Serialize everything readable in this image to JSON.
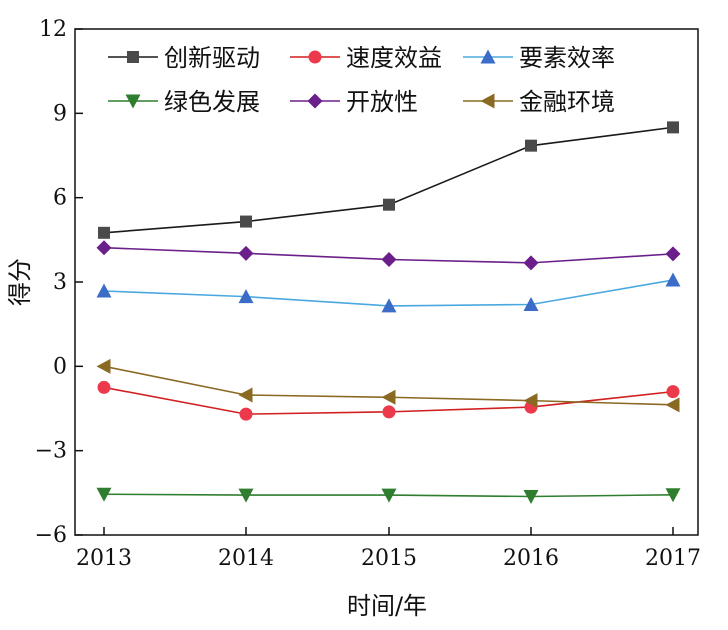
{
  "chart_data": {
    "type": "line",
    "xlabel": "时间/年",
    "ylabel": "得分",
    "categories": [
      "2013",
      "2014",
      "2015",
      "2016",
      "2017"
    ],
    "ylim": [
      -6,
      12
    ],
    "yticks": [
      -6,
      -3,
      0,
      3,
      6,
      9,
      12
    ],
    "ytick_labels": [
      "−6",
      "−3",
      "0",
      "3",
      "6",
      "9",
      "12"
    ],
    "grid": false,
    "legend": "top, two rows",
    "series": [
      {
        "name": "创新驱动",
        "values": [
          4.75,
          5.15,
          5.75,
          7.85,
          8.5
        ],
        "color": "#1a1a1a",
        "marker_color": "#4a4a4a",
        "marker": "square"
      },
      {
        "name": "速度效益",
        "values": [
          -0.75,
          -1.7,
          -1.62,
          -1.45,
          -0.9
        ],
        "color": "#d21f1f",
        "marker_color": "#ec3a4c",
        "marker": "circle"
      },
      {
        "name": "要素效率",
        "values": [
          2.68,
          2.48,
          2.15,
          2.2,
          3.07
        ],
        "color": "#4aa8e0",
        "marker_color": "#3a6cc8",
        "marker": "triangle-up"
      },
      {
        "name": "绿色发展",
        "values": [
          -4.55,
          -4.58,
          -4.58,
          -4.63,
          -4.57
        ],
        "color": "#2f7d2f",
        "marker_color": "#2f7d2f",
        "marker": "triangle-down"
      },
      {
        "name": "开放性",
        "values": [
          4.22,
          4.02,
          3.8,
          3.68,
          4.0
        ],
        "color": "#6b1f8a",
        "marker_color": "#6b1f8a",
        "marker": "diamond"
      },
      {
        "name": "金融环境",
        "values": [
          0.0,
          -1.02,
          -1.1,
          -1.22,
          -1.37
        ],
        "color": "#8a6a23",
        "marker_color": "#8a6a23",
        "marker": "triangle-left"
      }
    ]
  }
}
